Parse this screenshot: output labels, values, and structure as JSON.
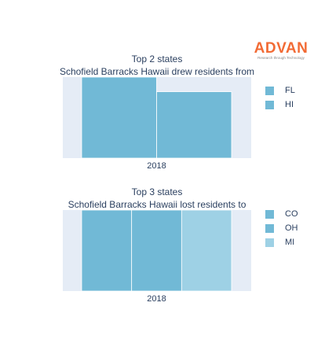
{
  "brand": {
    "name": "ADVAN",
    "tagline": "Research through Technology",
    "color": "#f26b35"
  },
  "charts": [
    {
      "title_line1": "Top 2 states",
      "title_line2": "Schofield Barracks Hawaii drew residents from",
      "legend": [
        "FL",
        "HI"
      ]
    },
    {
      "title_line1": "Top 3 states",
      "title_line2": "Schofield Barracks Hawaii lost residents to",
      "legend": [
        "CO",
        "OH",
        "MI"
      ]
    }
  ],
  "chart_data": [
    {
      "type": "bar",
      "categories": [
        "2018"
      ],
      "series": [
        {
          "name": "FL",
          "values": [
            1.0
          ],
          "color": "#71b9d6"
        },
        {
          "name": "HI",
          "values": [
            0.82
          ],
          "color": "#71b9d6"
        }
      ],
      "ylim": [
        0,
        1.0
      ],
      "grid": false,
      "plot_background": "#e5ecf6",
      "legend_position": "right"
    },
    {
      "type": "bar",
      "categories": [
        "2018"
      ],
      "series": [
        {
          "name": "CO",
          "values": [
            1.0
          ],
          "color": "#71b9d6"
        },
        {
          "name": "OH",
          "values": [
            1.0
          ],
          "color": "#71b9d6"
        },
        {
          "name": "MI",
          "values": [
            1.0
          ],
          "color": "#9ed1e5"
        }
      ],
      "ylim": [
        0,
        1.0
      ],
      "grid": false,
      "plot_background": "#e5ecf6",
      "legend_position": "right"
    }
  ]
}
